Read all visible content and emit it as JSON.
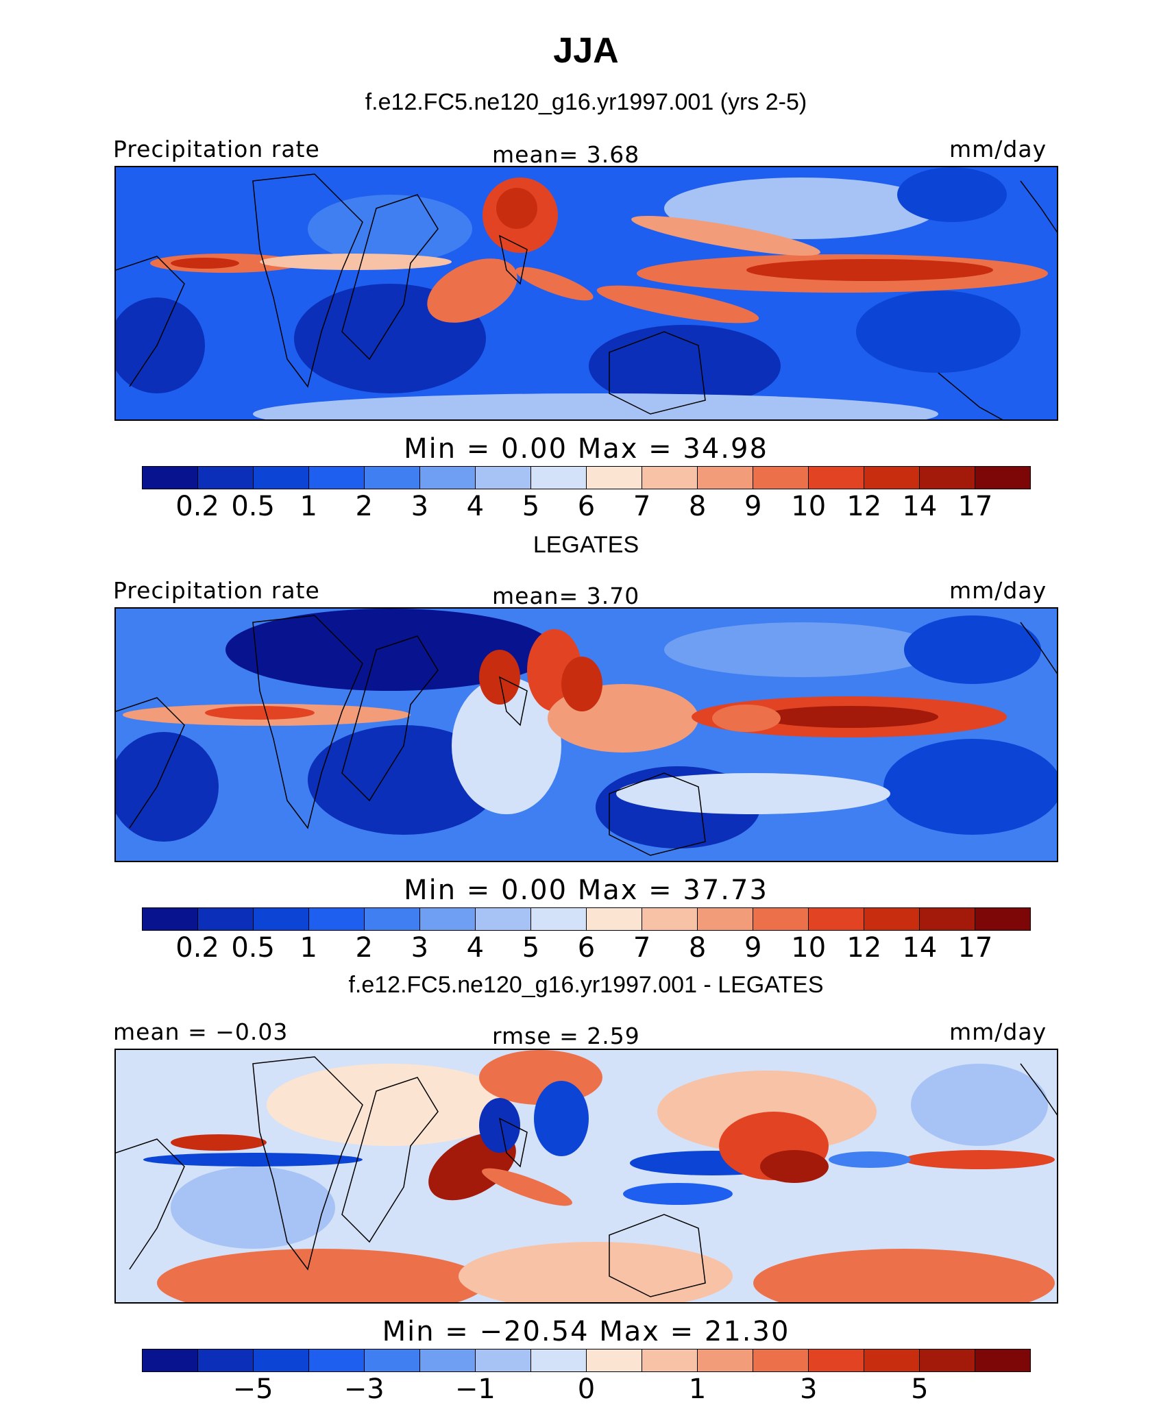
{
  "title": "JJA",
  "subtitle": "f.e12.FC5.ne120_g16.yr1997.001 (yrs 2-5)",
  "panels": [
    {
      "left_label": "Precipitation rate",
      "center_label": "mean=    3.68",
      "right_label": "mm/day",
      "minmax": "Min  =     0.00  Max  =    34.98",
      "ticks": [
        "0.2",
        "0.5",
        "1",
        "2",
        "3",
        "4",
        "5",
        "6",
        "7",
        "8",
        "9",
        "10",
        "12",
        "14",
        "17"
      ],
      "caption_below": "LEGATES"
    },
    {
      "left_label": "Precipitation rate",
      "center_label": "mean=    3.70",
      "right_label": "mm/day",
      "minmax": "Min  =     0.00  Max  =    37.73",
      "ticks": [
        "0.2",
        "0.5",
        "1",
        "2",
        "3",
        "4",
        "5",
        "6",
        "7",
        "8",
        "9",
        "10",
        "12",
        "14",
        "17"
      ],
      "caption_below": "f.e12.FC5.ne120_g16.yr1997.001 - LEGATES"
    },
    {
      "left_label": "mean  =   −0.03",
      "center_label": "rmse  =    2.59",
      "right_label": "mm/day",
      "minmax": "Min  = −20.54  Max  =   21.30",
      "ticks": [
        "−5",
        "−3",
        "−1",
        "0",
        "1",
        "3",
        "5"
      ]
    }
  ],
  "colors": {
    "precip_scale": [
      "#08138f",
      "#0b2fb8",
      "#0c45d6",
      "#1e5ff0",
      "#3f7ff2",
      "#6f9ff3",
      "#a7c3f5",
      "#d3e2f8",
      "#fce4d2",
      "#f8c2a6",
      "#f29c79",
      "#ec714b",
      "#e24423",
      "#c92d10",
      "#a31a0a",
      "#7d0606"
    ],
    "diff_scale": [
      "#08138f",
      "#0b2fb8",
      "#0c45d6",
      "#1e5ff0",
      "#3f7ff2",
      "#6f9ff3",
      "#a7c3f5",
      "#d3e2f8",
      "#fce4d2",
      "#f8c2a6",
      "#f29c79",
      "#ec714b",
      "#e24423",
      "#c92d10",
      "#a31a0a",
      "#7d0606"
    ]
  }
}
